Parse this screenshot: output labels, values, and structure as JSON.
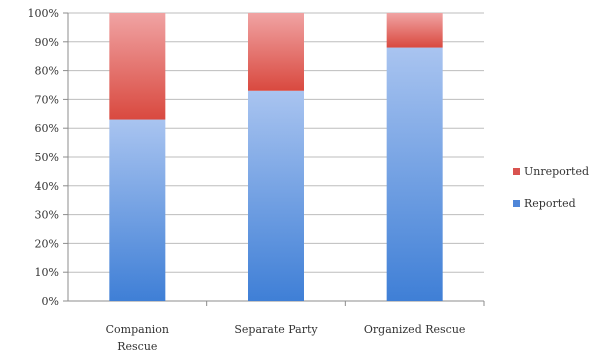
{
  "chart_data": {
    "type": "bar",
    "stacked": true,
    "percent_stacked": true,
    "categories": [
      "Companion Rescue",
      "Separate Party",
      "Organized Rescue"
    ],
    "category_lines": [
      [
        "Companion",
        "Rescue"
      ],
      [
        "Separate Party"
      ],
      [
        "Organized Rescue"
      ]
    ],
    "series": [
      {
        "name": "Reported",
        "values": [
          63,
          73,
          88
        ],
        "color": "#4f86d8"
      },
      {
        "name": "Unreported",
        "values": [
          37,
          27,
          12
        ],
        "color": "#d9534f"
      }
    ],
    "ylim": [
      0,
      100
    ],
    "yticks": [
      "0%",
      "10%",
      "20%",
      "30%",
      "40%",
      "50%",
      "60%",
      "70%",
      "80%",
      "90%",
      "100%"
    ],
    "legend": [
      "Unreported",
      "Reported"
    ],
    "legend_position": "right",
    "grid": true
  }
}
